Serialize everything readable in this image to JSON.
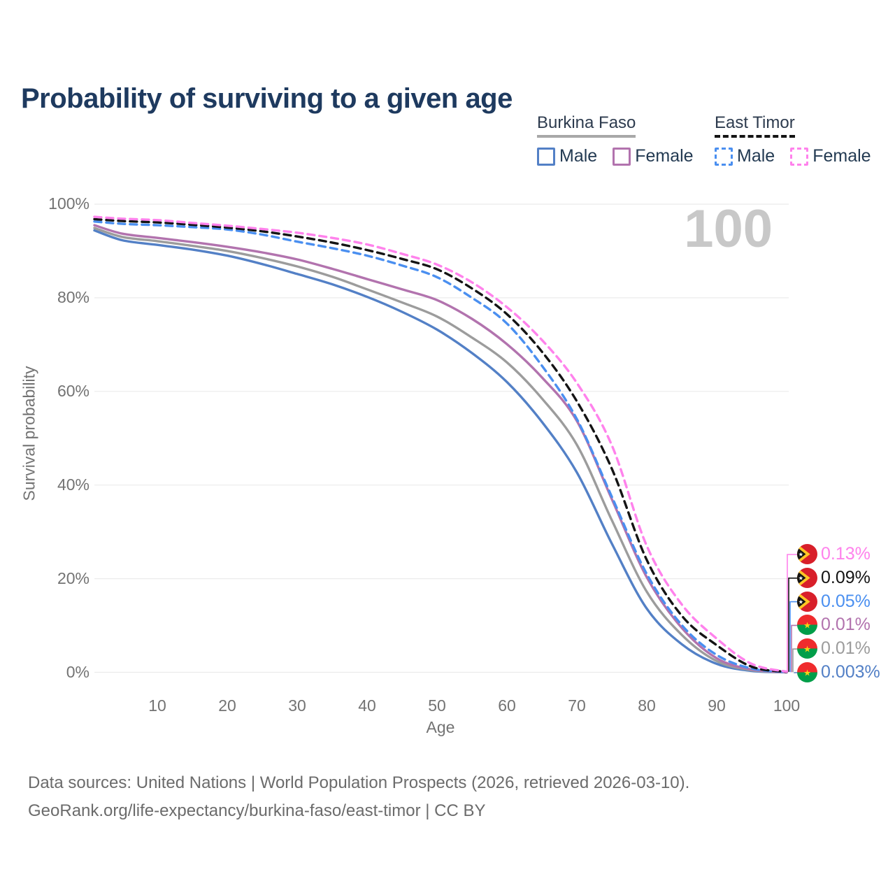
{
  "title": "Probability of surviving to a given age",
  "watermark_age": "100",
  "legend": {
    "groups": [
      {
        "country": "Burkina Faso",
        "line_style": "solid",
        "items": [
          {
            "label": "Male",
            "color": "#5380c6"
          },
          {
            "label": "Female",
            "color": "#b273ae"
          }
        ]
      },
      {
        "country": "East Timor",
        "line_style": "dashed",
        "items": [
          {
            "label": "Male",
            "color": "#4a8ff0"
          },
          {
            "label": "Female",
            "color": "#ff82ec"
          }
        ]
      }
    ]
  },
  "axes": {
    "x_label": "Age",
    "y_label": "Survival probability",
    "x_ticks": [
      10,
      20,
      30,
      40,
      50,
      60,
      70,
      80,
      90,
      100
    ],
    "y_ticks": [
      {
        "value": 0,
        "label": "0%"
      },
      {
        "value": 20,
        "label": "20%"
      },
      {
        "value": 40,
        "label": "40%"
      },
      {
        "value": 60,
        "label": "60%"
      },
      {
        "value": 80,
        "label": "80%"
      },
      {
        "value": 100,
        "label": "100%"
      }
    ]
  },
  "chart_data": {
    "type": "line",
    "title": "Probability of surviving to a given age",
    "xlabel": "Age",
    "ylabel": "Survival probability",
    "xlim": [
      1,
      100
    ],
    "ylim": [
      0,
      100
    ],
    "grid": true,
    "legend_position": "top-right",
    "x": [
      1,
      5,
      10,
      15,
      20,
      25,
      30,
      35,
      40,
      45,
      50,
      55,
      60,
      65,
      70,
      75,
      80,
      85,
      90,
      95,
      100
    ],
    "series": [
      {
        "name": "Burkina Faso Male",
        "country": "Burkina Faso",
        "sex": "Male",
        "color": "#5380c6",
        "dashed": false,
        "flag": "burkina-faso",
        "end_label": "0.003%",
        "values": [
          94.4,
          92.3,
          91.3,
          90.3,
          89.0,
          87.2,
          85.1,
          82.9,
          80.2,
          77.0,
          73.2,
          68.2,
          62.0,
          53.5,
          42.7,
          27.5,
          13.6,
          6.0,
          1.8,
          0.3,
          0.003
        ]
      },
      {
        "name": "Burkina Faso (both sexes)",
        "country": "Burkina Faso",
        "sex": "Both",
        "color": "#9c9c9c",
        "dashed": false,
        "flag": "burkina-faso",
        "end_label": "0.01%",
        "values": [
          94.9,
          93.0,
          92.1,
          91.1,
          90.0,
          88.5,
          86.7,
          84.5,
          81.8,
          79.0,
          76.0,
          71.5,
          66.2,
          58.5,
          48.6,
          32.5,
          17.2,
          8.0,
          2.4,
          0.45,
          0.01
        ]
      },
      {
        "name": "Burkina Faso Female",
        "country": "Burkina Faso",
        "sex": "Female",
        "color": "#b273ae",
        "dashed": false,
        "flag": "burkina-faso",
        "end_label": "0.01%",
        "values": [
          95.5,
          93.7,
          92.8,
          91.9,
          90.9,
          89.7,
          88.2,
          86.2,
          84.0,
          81.8,
          79.5,
          75.5,
          70.1,
          63.0,
          53.7,
          37.0,
          20.3,
          9.5,
          3.0,
          0.6,
          0.01
        ]
      },
      {
        "name": "East Timor Male",
        "country": "East Timor",
        "sex": "Male",
        "color": "#4a8ff0",
        "dashed": true,
        "flag": "east-timor",
        "end_label": "0.05%",
        "values": [
          96.3,
          95.8,
          95.5,
          95.1,
          94.6,
          93.5,
          92.0,
          90.6,
          89.0,
          86.9,
          84.4,
          80.0,
          74.5,
          65.5,
          54.1,
          37.5,
          21.0,
          10.1,
          3.7,
          0.8,
          0.05
        ]
      },
      {
        "name": "East Timor (both sexes)",
        "country": "East Timor",
        "sex": "Both",
        "color": "#141414",
        "dashed": true,
        "flag": "east-timor",
        "end_label": "0.09%",
        "values": [
          96.8,
          96.4,
          96.1,
          95.6,
          95.0,
          94.2,
          93.1,
          91.8,
          90.2,
          88.3,
          86.1,
          82.0,
          76.5,
          68.5,
          57.9,
          43.5,
          24.0,
          12.1,
          5.8,
          1.2,
          0.09
        ]
      },
      {
        "name": "East Timor Female",
        "country": "East Timor",
        "sex": "Female",
        "color": "#ff82ec",
        "dashed": true,
        "flag": "east-timor",
        "end_label": "0.13%",
        "values": [
          97.3,
          96.9,
          96.6,
          96.0,
          95.4,
          94.7,
          93.9,
          92.8,
          91.4,
          89.4,
          87.1,
          83.3,
          78.0,
          71.0,
          61.8,
          48.5,
          27.0,
          14.5,
          7.2,
          1.8,
          0.13
        ]
      }
    ]
  },
  "footer": {
    "line1": "Data sources: United Nations | World Population Prospects (2026, retrieved 2026-03-10).",
    "line2": "GeoRank.org/life-expectancy/burkina-faso/east-timor | CC BY"
  }
}
